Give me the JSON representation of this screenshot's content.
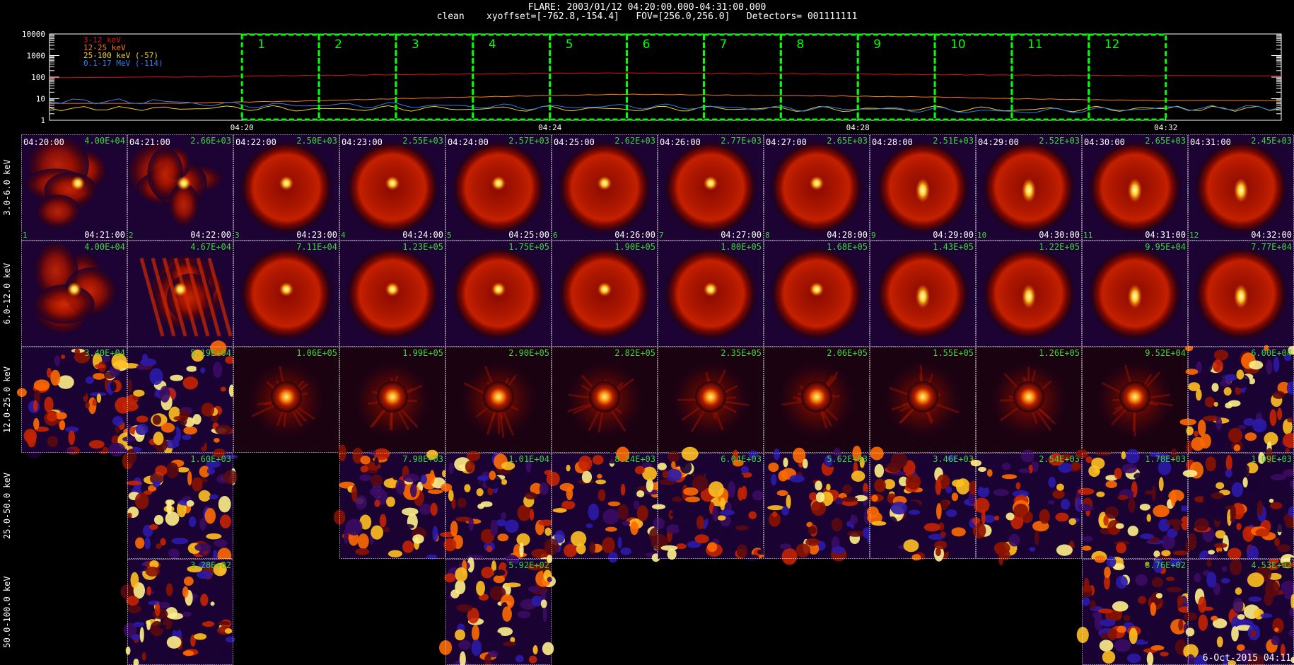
{
  "header": {
    "line1": "FLARE: 2003/01/12 04:20:00.000-04:31:00.000",
    "line2": "clean    xyoffset=[-762.8,-154.4]   FOV=[256.0,256.0]   Detectors= 001111111"
  },
  "chart_data": [
    {
      "type": "line",
      "yscale": "log",
      "ylim": [
        1,
        10000
      ],
      "y_tick_labels": [
        "10000",
        "1000",
        "100",
        "10",
        "1"
      ],
      "x_tick_labels": [
        "04:20",
        "04:24",
        "04:28",
        "04:32"
      ],
      "x_range": [
        "04:17:30",
        "04:33:30"
      ],
      "series": [
        {
          "name": "3-12 keV",
          "color": "#e01010",
          "x": [
            "04:17:30",
            "04:19:00",
            "04:20:00",
            "04:21:00",
            "04:22:00",
            "04:23:00",
            "04:24:00",
            "04:25:00",
            "04:26:00",
            "04:27:00",
            "04:28:00",
            "04:29:00",
            "04:30:00",
            "04:31:00",
            "04:32:00",
            "04:33:30"
          ],
          "y": [
            90,
            100,
            110,
            120,
            130,
            140,
            150,
            155,
            150,
            145,
            140,
            130,
            125,
            120,
            115,
            110
          ]
        },
        {
          "name": "12-25 keV",
          "color": "#ff7a10",
          "x": [
            "04:17:30",
            "04:19:00",
            "04:20:00",
            "04:21:00",
            "04:22:00",
            "04:23:00",
            "04:24:00",
            "04:25:00",
            "04:26:00",
            "04:27:00",
            "04:28:00",
            "04:29:00",
            "04:30:00",
            "04:31:00",
            "04:32:00",
            "04:33:30"
          ],
          "y": [
            6,
            6,
            7,
            8,
            10,
            12,
            14,
            16,
            15,
            14,
            13,
            12,
            10,
            9,
            8,
            8
          ]
        },
        {
          "name": "25-100 keV (-57)",
          "color": "#f0d020",
          "x": [
            "04:17:30",
            "04:19:00",
            "04:20:00",
            "04:21:00",
            "04:22:00",
            "04:23:00",
            "04:24:00",
            "04:25:00",
            "04:26:00",
            "04:27:00",
            "04:28:00",
            "04:29:00",
            "04:30:00",
            "04:31:00",
            "04:32:00",
            "04:33:30"
          ],
          "y": [
            3.5,
            3.5,
            3.8,
            3.2,
            3.6,
            3.4,
            3.5,
            3.3,
            3.6,
            3.4,
            3.2,
            3.5,
            3.1,
            3.3,
            3.4,
            3.5
          ]
        },
        {
          "name": "0.1-17 MeV (-114)",
          "color": "#2a7ff0",
          "x": [
            "04:17:30",
            "04:19:00",
            "04:20:00",
            "04:21:00",
            "04:22:00",
            "04:23:00",
            "04:24:00",
            "04:25:00",
            "04:26:00",
            "04:27:00",
            "04:28:00",
            "04:29:00",
            "04:30:00",
            "04:31:00",
            "04:32:00",
            "04:33:30"
          ],
          "y": [
            8,
            7,
            5,
            5,
            5,
            4.5,
            4,
            4.5,
            4,
            3.5,
            3.5,
            3,
            2.5,
            3,
            3.5,
            4
          ]
        }
      ],
      "intervals": [
        {
          "label": "1",
          "start": "04:20:00",
          "end": "04:21:00"
        },
        {
          "label": "2",
          "start": "04:21:00",
          "end": "04:22:00"
        },
        {
          "label": "3",
          "start": "04:22:00",
          "end": "04:23:00"
        },
        {
          "label": "4",
          "start": "04:23:00",
          "end": "04:24:00"
        },
        {
          "label": "5",
          "start": "04:24:00",
          "end": "04:25:00"
        },
        {
          "label": "6",
          "start": "04:25:00",
          "end": "04:26:00"
        },
        {
          "label": "7",
          "start": "04:26:00",
          "end": "04:27:00"
        },
        {
          "label": "8",
          "start": "04:27:00",
          "end": "04:28:00"
        },
        {
          "label": "9",
          "start": "04:28:00",
          "end": "04:29:00"
        },
        {
          "label": "10",
          "start": "04:29:00",
          "end": "04:30:00"
        },
        {
          "label": "11",
          "start": "04:30:00",
          "end": "04:31:00"
        },
        {
          "label": "12",
          "start": "04:31:00",
          "end": "04:32:00"
        }
      ],
      "interval_color": "#00ff00"
    },
    {
      "type": "heatmap",
      "energy_bands": [
        "3.0-6.0 keV",
        "6.0-12.0 keV",
        "12.0-25.0 keV",
        "25.0-50.0 keV",
        "50.0-100.0 keV"
      ],
      "start_times": [
        "04:20:00",
        "04:21:00",
        "04:22:00",
        "04:23:00",
        "04:24:00",
        "04:25:00",
        "04:26:00",
        "04:27:00",
        "04:28:00",
        "04:29:00",
        "04:30:00",
        "04:31:00"
      ],
      "end_times": [
        "04:21:00",
        "04:22:00",
        "04:23:00",
        "04:24:00",
        "04:25:00",
        "04:26:00",
        "04:27:00",
        "04:28:00",
        "04:29:00",
        "04:30:00",
        "04:31:00",
        "04:32:00"
      ],
      "interval_numbers": [
        "1",
        "2",
        "3",
        "4",
        "5",
        "6",
        "7",
        "8",
        "9",
        "10",
        "11",
        "12"
      ],
      "max_values": [
        [
          "4.00E+04",
          "2.66E+03",
          "2.50E+03",
          "2.55E+03",
          "2.57E+03",
          "2.62E+03",
          "2.77E+03",
          "2.65E+03",
          "2.51E+03",
          "2.52E+03",
          "2.65E+03",
          "2.45E+03"
        ],
        [
          "4.00E+04",
          "4.67E+04",
          "7.11E+04",
          "1.23E+05",
          "1.75E+05",
          "1.90E+05",
          "1.80E+05",
          "1.68E+05",
          "1.43E+05",
          "1.22E+05",
          "9.95E+04",
          "7.77E+04"
        ],
        [
          "3.40E+04",
          "5.19E+04",
          "1.06E+05",
          "1.99E+05",
          "2.90E+05",
          "2.82E+05",
          "2.35E+05",
          "2.06E+05",
          "1.55E+05",
          "1.26E+05",
          "9.52E+04",
          "6.00E+04"
        ],
        [
          null,
          "1.60E+03",
          null,
          "7.98E+03",
          "1.01E+04",
          "8.24E+03",
          "6.04E+03",
          "5.62E+03",
          "3.46E+03",
          "2.54E+03",
          "1.78E+03",
          "1.09E+03"
        ],
        [
          null,
          "3.28E+02",
          null,
          null,
          "5.92E+02",
          null,
          null,
          null,
          null,
          null,
          "8.76E+02",
          "4.53E+02"
        ]
      ],
      "image_styles": [
        [
          "blob",
          "blob",
          "ring",
          "ring",
          "ring",
          "ring",
          "ring",
          "ring",
          "ring",
          "ring",
          "ring",
          "ring"
        ],
        [
          "blob",
          "striped",
          "ring",
          "ring",
          "ring",
          "ring",
          "ring",
          "ring",
          "ring",
          "ring",
          "ring",
          "ring"
        ],
        [
          "noise",
          "noise",
          "point",
          "point",
          "point",
          "point",
          "point",
          "point",
          "point",
          "point",
          "point",
          "noise"
        ],
        [
          null,
          "noise",
          null,
          "noise",
          "noise",
          "noise",
          "noise",
          "noise",
          "noise",
          "noise",
          "noise",
          "noise"
        ],
        [
          null,
          "noise",
          null,
          null,
          "noise",
          null,
          null,
          null,
          null,
          null,
          "noise",
          "noise"
        ]
      ]
    }
  ],
  "footer": {
    "stamp": "6-Oct-2015 04:11"
  }
}
